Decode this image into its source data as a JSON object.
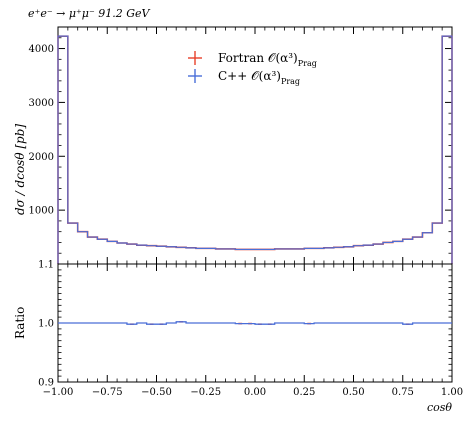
{
  "chart_data": [
    {
      "type": "line",
      "panel": "main",
      "title": "e⁺e⁻ → μ⁺μ⁻ 91.2 GeV",
      "ylabel": "dσ / dcosθ [pb]",
      "xlabel": "",
      "xlim": [
        -1.0,
        1.0
      ],
      "ylim": [
        0,
        4400
      ],
      "yticks": [
        "1000",
        "2000",
        "3000",
        "4000"
      ],
      "bin_edges": [
        -1.0,
        -0.95,
        -0.9,
        -0.85,
        -0.8,
        -0.75,
        -0.7,
        -0.65,
        -0.6,
        -0.55,
        -0.5,
        -0.45,
        -0.4,
        -0.35,
        -0.3,
        -0.25,
        -0.2,
        -0.15,
        -0.1,
        -0.05,
        0.0,
        0.05,
        0.1,
        0.15,
        0.2,
        0.25,
        0.3,
        0.35,
        0.4,
        0.45,
        0.5,
        0.55,
        0.6,
        0.65,
        0.7,
        0.75,
        0.8,
        0.85,
        0.9,
        0.95,
        1.0
      ],
      "series": [
        {
          "name": "Fortran 𝒪(α³)",
          "name_sub": "Prag",
          "color": "#e8402a",
          "values": [
            4230,
            760,
            600,
            500,
            460,
            420,
            390,
            370,
            350,
            340,
            330,
            320,
            310,
            300,
            290,
            290,
            280,
            280,
            270,
            270,
            270,
            270,
            280,
            280,
            280,
            290,
            290,
            300,
            310,
            320,
            340,
            350,
            370,
            400,
            420,
            460,
            500,
            580,
            760,
            4230
          ]
        },
        {
          "name": "C++ 𝒪(α³)",
          "name_sub": "Prag",
          "color": "#4a6ed8",
          "values": [
            4230,
            760,
            600,
            500,
            460,
            420,
            390,
            370,
            350,
            340,
            330,
            320,
            310,
            300,
            290,
            290,
            280,
            280,
            270,
            270,
            270,
            270,
            280,
            280,
            280,
            290,
            290,
            300,
            310,
            320,
            340,
            350,
            370,
            400,
            420,
            460,
            500,
            580,
            760,
            4230
          ]
        }
      ],
      "legend": "top-center"
    },
    {
      "type": "line",
      "panel": "ratio",
      "ylabel": "Ratio",
      "xlabel": "cosθ",
      "xlim": [
        -1.0,
        1.0
      ],
      "ylim": [
        0.9,
        1.1
      ],
      "yticks": [
        "0.9",
        "1.0",
        "1.1"
      ],
      "xticks": [
        "−1.00",
        "−0.75",
        "−0.50",
        "−0.25",
        "0.00",
        "0.25",
        "0.50",
        "0.75",
        "1.00"
      ],
      "ratio_values": [
        1.0,
        1.0,
        1.0,
        1.0,
        1.0,
        1.0,
        1.0,
        0.998,
        1.0,
        0.998,
        0.998,
        1.0,
        1.002,
        1.0,
        1.0,
        1.0,
        1.0,
        1.0,
        0.999,
        0.999,
        0.998,
        0.998,
        1.0,
        1.0,
        1.0,
        0.999,
        1.0,
        1.0,
        1.0,
        1.0,
        1.0,
        1.0,
        1.0,
        1.0,
        1.0,
        0.998,
        1.0,
        1.0,
        1.0,
        1.0
      ],
      "color": "#4a6ed8",
      "err_color": "#e8402a"
    }
  ]
}
